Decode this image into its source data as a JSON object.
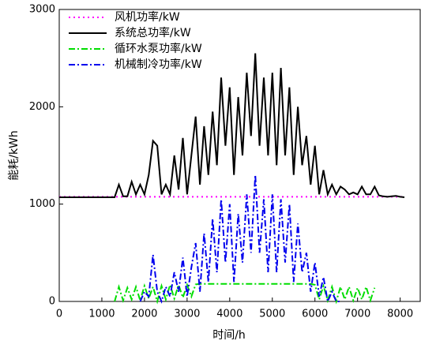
{
  "chart_data": {
    "type": "line",
    "xlabel": "时间/h",
    "ylabel": "能耗/kWh",
    "xlim": [
      0,
      8470
    ],
    "ylim": [
      0,
      3000
    ],
    "xticks": [
      0,
      1000,
      2000,
      3000,
      4000,
      5000,
      6000,
      7000,
      8000
    ],
    "yticks": [
      0,
      1000,
      2000,
      3000
    ],
    "legend": "upper left",
    "series": [
      {
        "name": "风机功率/kW",
        "color": "#ff00ff",
        "dash": "dotted",
        "x": [
          0,
          8100
        ],
        "values": [
          1075,
          1075
        ]
      },
      {
        "name": "系统总功率/kW",
        "color": "#000000",
        "dash": "solid",
        "x": [
          0,
          100,
          200,
          300,
          400,
          500,
          600,
          700,
          800,
          900,
          1000,
          1100,
          1200,
          1300,
          1400,
          1500,
          1600,
          1700,
          1800,
          1900,
          2000,
          2100,
          2200,
          2300,
          2400,
          2500,
          2600,
          2700,
          2800,
          2900,
          3000,
          3100,
          3200,
          3300,
          3400,
          3500,
          3600,
          3700,
          3800,
          3900,
          4000,
          4100,
          4200,
          4300,
          4400,
          4500,
          4600,
          4700,
          4800,
          4900,
          5000,
          5100,
          5200,
          5300,
          5400,
          5500,
          5600,
          5700,
          5800,
          5900,
          6000,
          6100,
          6200,
          6300,
          6400,
          6500,
          6600,
          6700,
          6800,
          6900,
          7000,
          7100,
          7200,
          7300,
          7400,
          7500,
          7600,
          7700,
          7800,
          7900,
          8000,
          8100
        ],
        "values": [
          1070,
          1070,
          1070,
          1070,
          1070,
          1070,
          1070,
          1070,
          1070,
          1070,
          1070,
          1070,
          1070,
          1070,
          1200,
          1080,
          1080,
          1230,
          1100,
          1200,
          1100,
          1300,
          1650,
          1600,
          1100,
          1200,
          1100,
          1500,
          1150,
          1680,
          1100,
          1500,
          1900,
          1200,
          1800,
          1300,
          1950,
          1400,
          2300,
          1600,
          2200,
          1300,
          2100,
          1500,
          2350,
          1700,
          2550,
          1600,
          2300,
          1500,
          2350,
          1400,
          2400,
          1500,
          2200,
          1300,
          2000,
          1400,
          1700,
          1200,
          1600,
          1100,
          1350,
          1100,
          1200,
          1100,
          1180,
          1150,
          1100,
          1120,
          1100,
          1180,
          1100,
          1100,
          1180,
          1090,
          1080,
          1075,
          1080,
          1085,
          1075,
          1070
        ]
      },
      {
        "name": "循环水泵功率/kW",
        "color": "#00dd00",
        "dash": "dashdot",
        "x": [
          1300,
          1400,
          1500,
          1600,
          1700,
          1800,
          1900,
          2000,
          2100,
          2200,
          2300,
          2400,
          2500,
          2600,
          2700,
          2800,
          2900,
          3000,
          3100,
          3200,
          3300,
          3400,
          3500,
          3600,
          3700,
          3800,
          3900,
          4000,
          4100,
          4200,
          4300,
          4400,
          4500,
          4600,
          4700,
          4800,
          4900,
          5000,
          5100,
          5200,
          5300,
          5400,
          5500,
          5600,
          5700,
          5800,
          5900,
          6000,
          6100,
          6200,
          6300,
          6400,
          6500,
          6600,
          6700,
          6800,
          6900,
          7000,
          7100,
          7200,
          7300,
          7400
        ],
        "values": [
          0,
          150,
          10,
          140,
          20,
          150,
          10,
          160,
          30,
          150,
          0,
          160,
          20,
          170,
          30,
          170,
          40,
          170,
          50,
          175,
          180,
          180,
          180,
          180,
          180,
          180,
          180,
          180,
          180,
          180,
          180,
          180,
          180,
          180,
          180,
          180,
          180,
          180,
          180,
          180,
          180,
          180,
          180,
          180,
          180,
          180,
          180,
          170,
          20,
          160,
          10,
          150,
          0,
          150,
          20,
          150,
          10,
          140,
          20,
          150,
          10,
          140
        ]
      },
      {
        "name": "机械制冷功率/kW",
        "color": "#0000ee",
        "dash": "dashdot",
        "x": [
          1900,
          2000,
          2100,
          2200,
          2300,
          2400,
          2500,
          2600,
          2700,
          2800,
          2900,
          3000,
          3100,
          3200,
          3300,
          3400,
          3500,
          3600,
          3700,
          3800,
          3900,
          4000,
          4100,
          4200,
          4300,
          4400,
          4500,
          4600,
          4700,
          4800,
          4900,
          5000,
          5100,
          5200,
          5300,
          5400,
          5500,
          5600,
          5700,
          5800,
          5900,
          6000,
          6100,
          6200,
          6300,
          6400,
          6500,
          6600
        ],
        "values": [
          0,
          100,
          50,
          480,
          100,
          0,
          150,
          50,
          300,
          100,
          450,
          50,
          350,
          600,
          100,
          700,
          200,
          850,
          300,
          1050,
          400,
          1000,
          200,
          900,
          400,
          1100,
          500,
          1300,
          500,
          1050,
          300,
          1100,
          300,
          1050,
          400,
          1000,
          200,
          800,
          300,
          500,
          100,
          400,
          50,
          250,
          0,
          100,
          0,
          0
        ]
      }
    ]
  }
}
